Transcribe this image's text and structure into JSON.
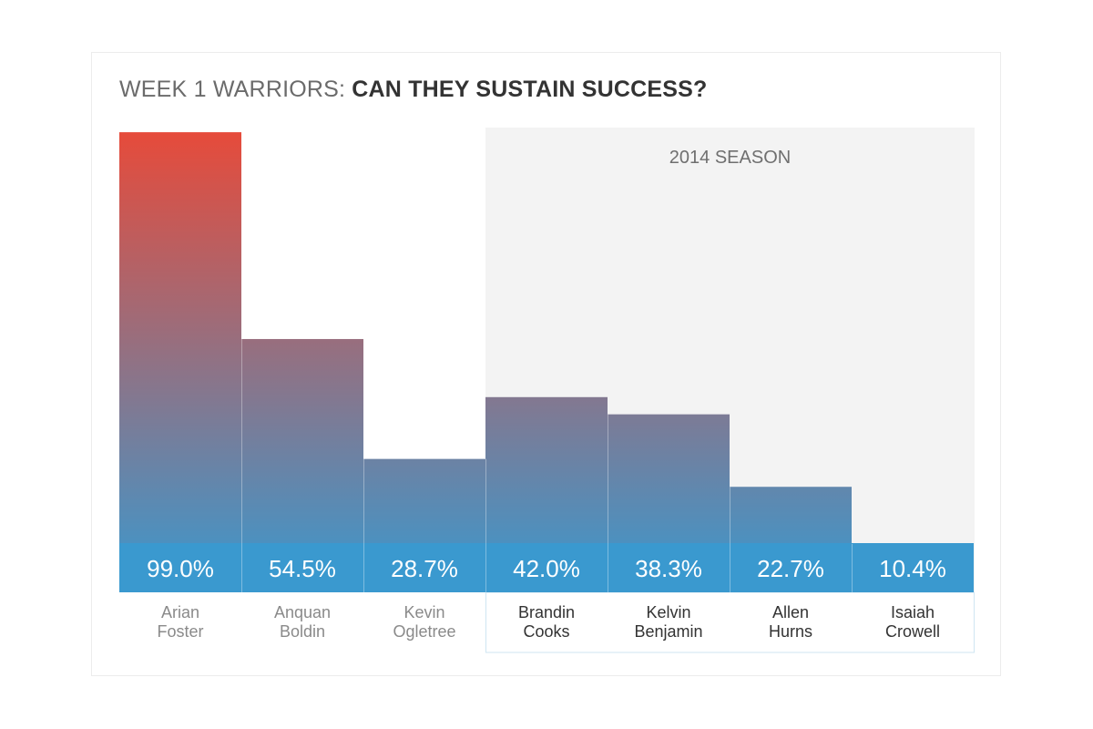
{
  "title": {
    "prefix": "WEEK 1 WARRIORS:",
    "emphasis": "CAN THEY SUSTAIN SUCCESS?"
  },
  "chart_data": {
    "type": "bar",
    "categories": [
      [
        "Arian",
        "Foster"
      ],
      [
        "Anquan",
        "Boldin"
      ],
      [
        "Kevin",
        "Ogletree"
      ],
      [
        "Brandin",
        "Cooks"
      ],
      [
        "Kelvin",
        "Benjamin"
      ],
      [
        "Allen",
        "Hurns"
      ],
      [
        "Isaiah",
        "Crowell"
      ]
    ],
    "values": [
      99.0,
      54.5,
      28.7,
      42.0,
      38.3,
      22.7,
      10.4
    ],
    "value_labels": [
      "99.0%",
      "54.5%",
      "28.7%",
      "42.0%",
      "38.3%",
      "22.7%",
      "10.4%"
    ],
    "ylim": [
      0,
      100
    ],
    "highlight_region": {
      "label": "2014 SEASON",
      "categories_from_index": 3
    },
    "colors": {
      "bar_bottom": "#3a99cf",
      "bar_top": "#e84a39",
      "label_band": "#3a99cf",
      "region_fill": "#f3f3f3",
      "region_border": "#cfe6f2"
    }
  }
}
